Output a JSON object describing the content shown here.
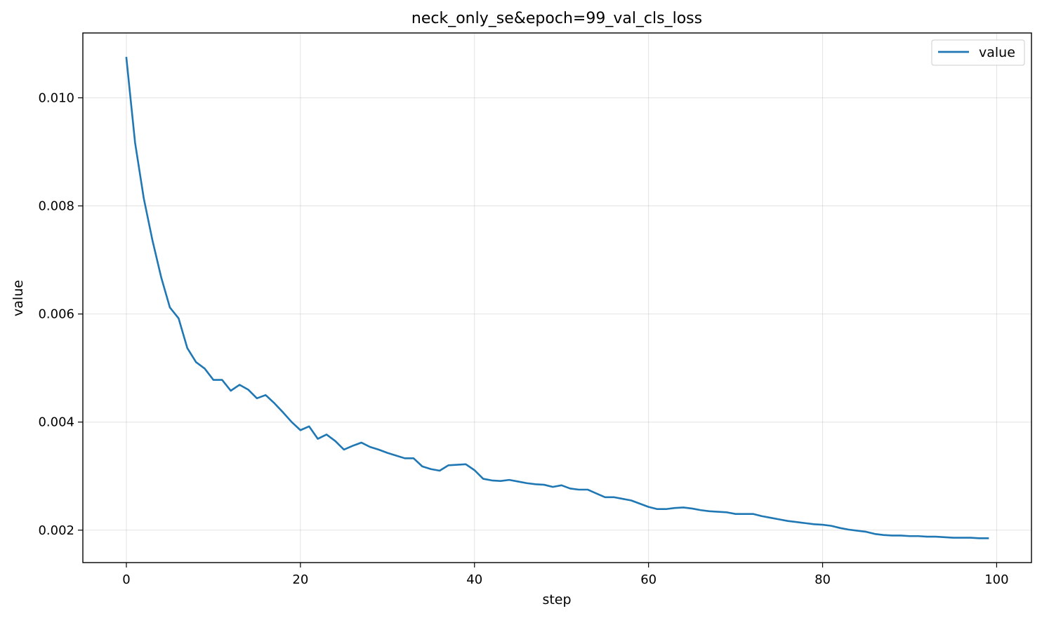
{
  "chart_data": {
    "type": "line",
    "title": "neck_only_se&epoch=99_val_cls_loss",
    "xlabel": "step",
    "ylabel": "value",
    "xlim": [
      -5,
      104
    ],
    "ylim": [
      0.0014,
      0.0112
    ],
    "xticks": [
      0,
      20,
      40,
      60,
      80,
      100
    ],
    "yticks": [
      0.002,
      0.004,
      0.006,
      0.008,
      0.01
    ],
    "xtick_labels": [
      "0",
      "20",
      "40",
      "60",
      "80",
      "100"
    ],
    "ytick_labels": [
      "0.002",
      "0.004",
      "0.006",
      "0.008",
      "0.010"
    ],
    "grid": true,
    "legend_position": "top-right",
    "series": [
      {
        "name": "value",
        "color": "#1f77b4",
        "x": [
          0,
          1,
          2,
          3,
          4,
          5,
          6,
          7,
          8,
          9,
          10,
          11,
          12,
          13,
          14,
          15,
          16,
          17,
          18,
          19,
          20,
          21,
          22,
          23,
          24,
          25,
          26,
          27,
          28,
          29,
          30,
          31,
          32,
          33,
          34,
          35,
          36,
          37,
          38,
          39,
          40,
          41,
          42,
          43,
          44,
          45,
          46,
          47,
          48,
          49,
          50,
          51,
          52,
          53,
          54,
          55,
          56,
          57,
          58,
          59,
          60,
          61,
          62,
          63,
          64,
          65,
          66,
          67,
          68,
          69,
          70,
          71,
          72,
          73,
          74,
          75,
          76,
          77,
          78,
          79,
          80,
          81,
          82,
          83,
          84,
          85,
          86,
          87,
          88,
          89,
          90,
          91,
          92,
          93,
          94,
          95,
          96,
          97,
          98,
          99
        ],
        "values": [
          0.01074,
          0.00917,
          0.00814,
          0.00736,
          0.00668,
          0.00612,
          0.00592,
          0.00537,
          0.00511,
          0.00499,
          0.00478,
          0.00478,
          0.00458,
          0.00469,
          0.0046,
          0.00444,
          0.0045,
          0.00435,
          0.00418,
          0.004,
          0.00385,
          0.00392,
          0.00369,
          0.00377,
          0.00365,
          0.00349,
          0.00356,
          0.00362,
          0.00354,
          0.00349,
          0.00343,
          0.00338,
          0.00333,
          0.00333,
          0.00318,
          0.00313,
          0.0031,
          0.0032,
          0.00321,
          0.00322,
          0.00311,
          0.00295,
          0.00292,
          0.00291,
          0.00293,
          0.0029,
          0.00287,
          0.00285,
          0.00284,
          0.0028,
          0.00283,
          0.00277,
          0.00275,
          0.00275,
          0.00268,
          0.00261,
          0.00261,
          0.00258,
          0.00255,
          0.00249,
          0.00243,
          0.00239,
          0.00239,
          0.00241,
          0.00242,
          0.0024,
          0.00237,
          0.00235,
          0.00234,
          0.00233,
          0.0023,
          0.0023,
          0.0023,
          0.00226,
          0.00223,
          0.0022,
          0.00217,
          0.00215,
          0.00213,
          0.00211,
          0.0021,
          0.00208,
          0.00204,
          0.00201,
          0.00199,
          0.00197,
          0.00193,
          0.00191,
          0.0019,
          0.0019,
          0.00189,
          0.00189,
          0.00188,
          0.00188,
          0.00187,
          0.00186,
          0.00186,
          0.00186,
          0.00185,
          0.00185
        ]
      }
    ]
  }
}
